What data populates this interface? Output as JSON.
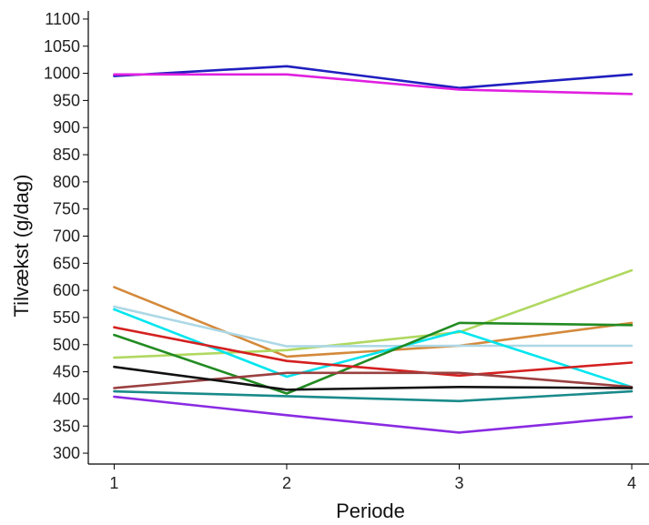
{
  "chart_data": {
    "type": "line",
    "xlabel": "Periode",
    "ylabel": "Tilvækst (g/dag)",
    "x": [
      1,
      2,
      3,
      4
    ],
    "xlim": [
      0.85,
      4.1
    ],
    "ylim": [
      280,
      1115
    ],
    "yticks": [
      300,
      350,
      400,
      450,
      500,
      550,
      600,
      650,
      700,
      750,
      800,
      850,
      900,
      950,
      1000,
      1050,
      1100
    ],
    "grid": false,
    "series": [
      {
        "color": "#1f1fbf",
        "values": [
          995,
          1013,
          973,
          998
        ]
      },
      {
        "color": "#e020e0",
        "values": [
          998,
          998,
          970,
          962
        ]
      },
      {
        "color": "#d4893a",
        "values": [
          606,
          478,
          498,
          540
        ]
      },
      {
        "color": "#b0d860",
        "values": [
          476,
          490,
          523,
          637
        ]
      },
      {
        "color": "#add8e6",
        "values": [
          570,
          497,
          498,
          498
        ]
      },
      {
        "color": "#00e5ee",
        "values": [
          565,
          441,
          525,
          422
        ]
      },
      {
        "color": "#228b22",
        "values": [
          518,
          410,
          540,
          536
        ]
      },
      {
        "color": "#d42020",
        "values": [
          532,
          470,
          443,
          467
        ]
      },
      {
        "color": "#9b4040",
        "values": [
          420,
          448,
          448,
          422
        ]
      },
      {
        "color": "#111111",
        "values": [
          459,
          417,
          422,
          420
        ]
      },
      {
        "color": "#1a8a8a",
        "values": [
          414,
          405,
          396,
          414
        ]
      },
      {
        "color": "#8a2be2",
        "values": [
          404,
          370,
          338,
          367
        ]
      }
    ]
  }
}
